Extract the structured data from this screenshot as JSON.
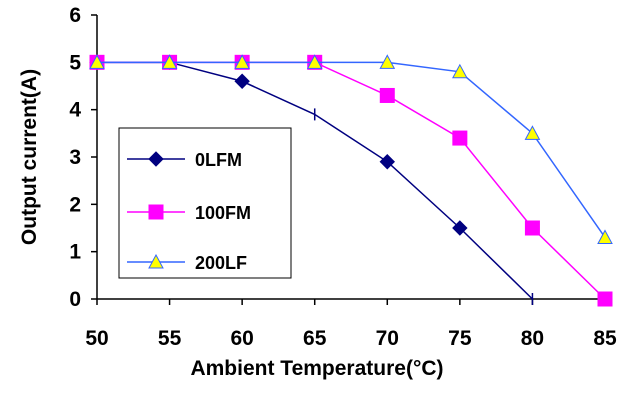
{
  "chart_data": {
    "type": "line",
    "title": "",
    "xlabel": "Ambient Temperature(°C)",
    "ylabel": "Output current(A)",
    "x": [
      50,
      55,
      60,
      65,
      70,
      75,
      80,
      85
    ],
    "xlim": [
      50,
      85
    ],
    "ylim": [
      0,
      6
    ],
    "x_ticks": [
      "50",
      "55",
      "60",
      "65",
      "70",
      "75",
      "80",
      "85"
    ],
    "y_ticks": [
      "0",
      "1",
      "2",
      "3",
      "4",
      "5",
      "6"
    ],
    "grid": false,
    "legend_position": "left",
    "series": [
      {
        "name": "0LFM",
        "color": "#000080",
        "marker": "diamond",
        "points": [
          [
            50,
            5
          ],
          [
            55,
            5
          ],
          [
            60,
            4.6
          ],
          [
            65,
            3.9
          ],
          [
            70,
            2.9
          ],
          [
            75,
            1.5
          ],
          [
            80,
            0
          ]
        ],
        "marker_flags": [
          true,
          true,
          true,
          false,
          true,
          true,
          false
        ]
      },
      {
        "name": "100FM",
        "color": "#FF00FF",
        "marker": "square",
        "points": [
          [
            50,
            5
          ],
          [
            55,
            5
          ],
          [
            60,
            5
          ],
          [
            65,
            5
          ],
          [
            70,
            4.3
          ],
          [
            75,
            3.4
          ],
          [
            80,
            1.5
          ],
          [
            85,
            0
          ]
        ],
        "marker_flags": [
          true,
          true,
          true,
          true,
          true,
          true,
          true,
          true
        ]
      },
      {
        "name": "200LF",
        "color": "#3366FF",
        "marker": "triangle",
        "marker_fill": "#FFFF00",
        "points": [
          [
            50,
            5
          ],
          [
            55,
            5
          ],
          [
            60,
            5
          ],
          [
            65,
            5
          ],
          [
            70,
            5
          ],
          [
            75,
            4.8
          ],
          [
            80,
            3.5
          ],
          [
            85,
            1.3
          ]
        ],
        "marker_flags": [
          true,
          true,
          true,
          true,
          true,
          true,
          true,
          true
        ]
      }
    ]
  }
}
